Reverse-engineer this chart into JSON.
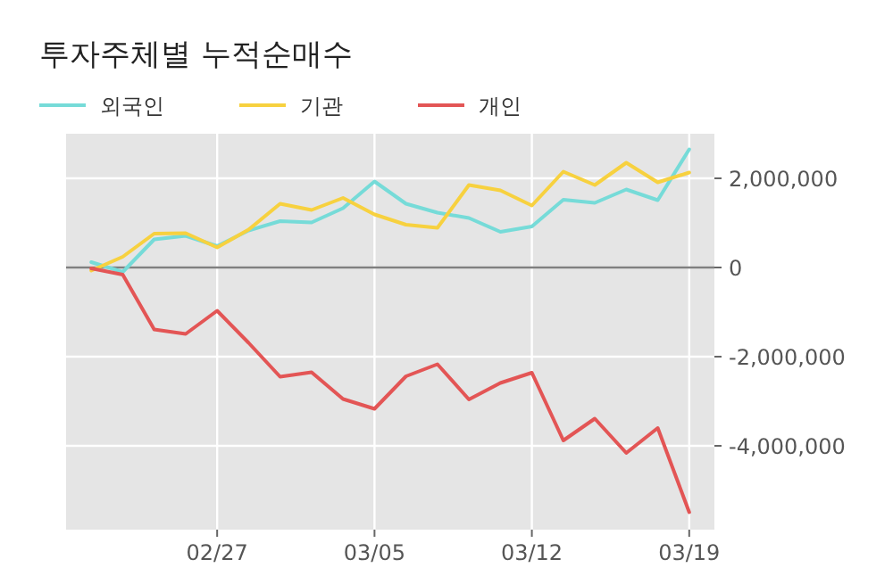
{
  "chart_data": {
    "type": "line",
    "title": "투자주체별 누적순매수",
    "categories": [
      null,
      null,
      null,
      null,
      "02/27",
      null,
      null,
      null,
      null,
      "03/05",
      null,
      null,
      null,
      null,
      "03/12",
      null,
      null,
      null,
      null,
      "03/19"
    ],
    "series": [
      {
        "name": "외국인",
        "color": "#76dbd8",
        "values": [
          120000,
          -100000,
          630000,
          710000,
          480000,
          830000,
          1040000,
          1010000,
          1330000,
          1930000,
          1430000,
          1230000,
          1110000,
          800000,
          920000,
          1520000,
          1450000,
          1750000,
          1510000,
          2650000
        ]
      },
      {
        "name": "기관",
        "color": "#f7d13f",
        "values": [
          -70000,
          240000,
          760000,
          770000,
          450000,
          850000,
          1430000,
          1290000,
          1560000,
          1190000,
          960000,
          890000,
          1850000,
          1730000,
          1390000,
          2150000,
          1850000,
          2350000,
          1910000,
          2130000
        ]
      },
      {
        "name": "개인",
        "color": "#e35555",
        "values": [
          -20000,
          -160000,
          -1390000,
          -1490000,
          -970000,
          -1690000,
          -2450000,
          -2350000,
          -2950000,
          -3170000,
          -2440000,
          -2170000,
          -2960000,
          -2590000,
          -2360000,
          -3880000,
          -3390000,
          -4160000,
          -3600000,
          -5490000
        ]
      }
    ],
    "ylim": [
      -5880000,
      3000000
    ],
    "yticks": [
      {
        "value": 2000000,
        "label": "2,000,000"
      },
      {
        "value": 0,
        "label": "0"
      },
      {
        "value": -2000000,
        "label": "-2,000,000"
      },
      {
        "value": -4000000,
        "label": "-4,000,000"
      }
    ],
    "ref_lines": [
      {
        "axis": "y",
        "value": 0,
        "color": "#808080"
      }
    ],
    "grid": true,
    "legend": "top left",
    "line_style": "solid",
    "marker": "none"
  }
}
